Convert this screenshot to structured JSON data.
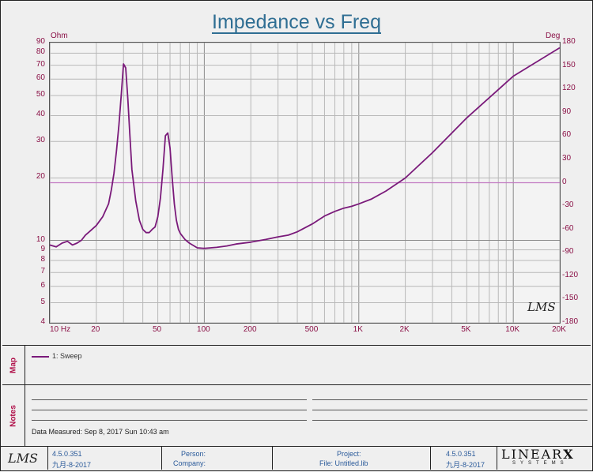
{
  "title": "Impedance vs Freq",
  "left_unit": "Ohm",
  "right_unit": "Deg",
  "watermark": "LMS",
  "chart_data": {
    "type": "line",
    "title": "Impedance vs Freq",
    "x_scale": "log",
    "y_scale": "log",
    "xlim": [
      10,
      20000
    ],
    "ylim_left": [
      4,
      90
    ],
    "ylim_right": [
      -180,
      180
    ],
    "x_ticks": [
      {
        "value": 10,
        "label": "10  Hz"
      },
      {
        "value": 20,
        "label": "20"
      },
      {
        "value": 50,
        "label": "50"
      },
      {
        "value": 100,
        "label": "100"
      },
      {
        "value": 200,
        "label": "200"
      },
      {
        "value": 500,
        "label": "500"
      },
      {
        "value": 1000,
        "label": "1K"
      },
      {
        "value": 2000,
        "label": "2K"
      },
      {
        "value": 5000,
        "label": "5K"
      },
      {
        "value": 10000,
        "label": "10K"
      },
      {
        "value": 20000,
        "label": "20K"
      }
    ],
    "y_ticks_left": [
      90,
      80,
      70,
      60,
      50,
      40,
      30,
      20,
      10,
      9,
      8,
      7,
      6,
      5,
      4
    ],
    "y_ticks_right": [
      180,
      150,
      120,
      90,
      60,
      30,
      0,
      -30,
      -60,
      -90,
      -120,
      -150,
      -180
    ],
    "reference_line_deg": 0,
    "grid": true,
    "series": [
      {
        "name": "1: Sweep",
        "color": "#7a1a7a",
        "x": [
          10,
          11,
          12,
          13,
          14,
          15,
          16,
          17,
          18,
          20,
          22,
          24,
          25,
          26,
          27,
          28,
          29,
          30,
          31,
          32,
          33,
          34,
          36,
          38,
          40,
          42,
          44,
          46,
          48,
          50,
          52,
          54,
          56,
          58,
          60,
          62,
          64,
          66,
          68,
          70,
          75,
          80,
          90,
          100,
          110,
          120,
          140,
          160,
          200,
          250,
          300,
          350,
          400,
          500,
          600,
          700,
          800,
          900,
          1000,
          1200,
          1500,
          2000,
          3000,
          5000,
          10000,
          20000
        ],
        "y": [
          9.5,
          9.3,
          9.7,
          9.9,
          9.5,
          9.7,
          10.0,
          10.6,
          11.0,
          11.8,
          13.0,
          15.0,
          17.5,
          21.0,
          27.0,
          36.0,
          50.0,
          71.0,
          68.0,
          48.0,
          32.0,
          22.0,
          15.5,
          12.5,
          11.3,
          10.9,
          10.9,
          11.3,
          11.6,
          13.0,
          16.0,
          22.0,
          32.0,
          33.0,
          28.0,
          20.0,
          15.0,
          12.5,
          11.3,
          10.8,
          10.1,
          9.7,
          9.2,
          9.15,
          9.2,
          9.25,
          9.4,
          9.6,
          9.8,
          10.1,
          10.4,
          10.6,
          11.0,
          12.0,
          13.1,
          13.8,
          14.3,
          14.6,
          15.0,
          15.8,
          17.3,
          20.0,
          26.5,
          39.0,
          62.0,
          85.0
        ]
      }
    ]
  },
  "legend": {
    "side_label": "Map",
    "entry": "1: Sweep"
  },
  "notes": {
    "side_label": "Notes",
    "data_measured": "Data Measured: Sep 8, 2017 Sun 10:43 am"
  },
  "footer": {
    "logo": "LMS",
    "version_left": "4.5.0.351",
    "date_left": "九月-8-2017",
    "person_label": "Person:",
    "company_label": "Company:",
    "project_label": "Project:",
    "file_label": "File: Untitled.lib",
    "version_right": "4.5.0.351",
    "date_right": "九月-8-2017",
    "brand_line1": "LINEAR",
    "brand_x": "X",
    "brand_line2": "SYSTEMS"
  }
}
